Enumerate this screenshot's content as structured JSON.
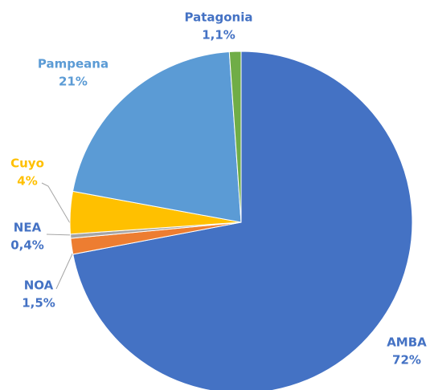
{
  "chart_data": {
    "type": "pie",
    "categories": [
      "AMBA",
      "NOA",
      "NEA",
      "Cuyo",
      "Pampeana",
      "Patagonia"
    ],
    "values": [
      72,
      1.5,
      0.4,
      4,
      21,
      1.1
    ],
    "value_labels": [
      "72%",
      "1,5%",
      "0,4%",
      "4%",
      "21%",
      "1,1%"
    ],
    "colors": [
      "#4472c4",
      "#ed7d31",
      "#a5a5a5",
      "#ffc000",
      "#5b9bd5",
      "#70ad47"
    ]
  }
}
